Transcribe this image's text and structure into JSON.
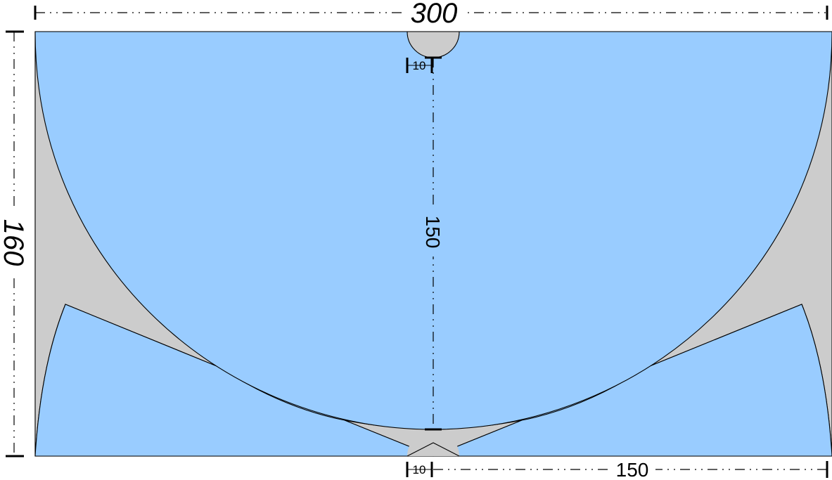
{
  "drawing": {
    "colors": {
      "fill_main": "#99ccff",
      "fill_gap": "#cccccc",
      "outline": "#000000",
      "background": "#ffffff"
    },
    "dimensions": {
      "overall_width": "300",
      "overall_height": "160",
      "big_radius": "150",
      "bottom_half_width": "150",
      "top_hole": "10",
      "bottom_hole": "10"
    }
  }
}
